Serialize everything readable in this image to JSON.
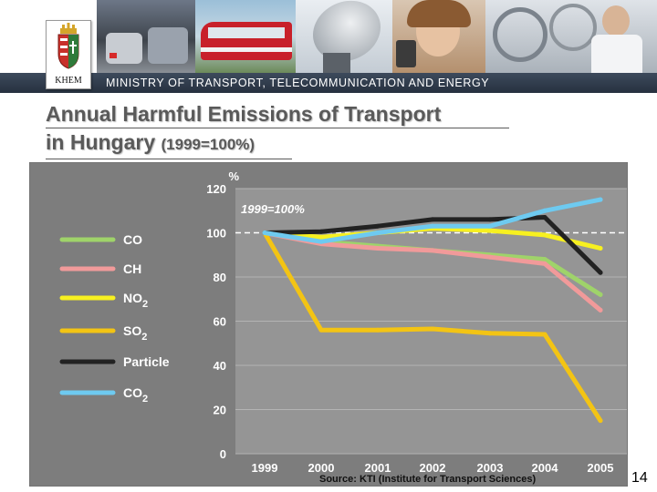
{
  "header": {
    "ministry_name": "MINISTRY OF TRANSPORT, TELECOMMUNICATION AND ENERGY",
    "logo_text": "KHEM",
    "photos": [
      "cars-in-traffic-photo",
      "red-train-photo",
      "satellite-dish-photo",
      "woman-with-phone-photo",
      "engineer-in-lab-photo"
    ]
  },
  "slide": {
    "title_line_1": "Annual Harmful Emissions of Transport",
    "title_line_2": "in Hungary",
    "title_suffix": "(1999=100%)",
    "source": "Source: KTI (Institute for Transport Sciences)",
    "page_number": "14"
  },
  "chart_data": {
    "type": "line",
    "title": "",
    "xlabel": "",
    "ylabel": "%",
    "baseline_label": "1999=100%",
    "categories": [
      "1999",
      "2000",
      "2001",
      "2002",
      "2003",
      "2004",
      "2005"
    ],
    "ylim": [
      0,
      120
    ],
    "yticks": [
      "0",
      "20",
      "40",
      "60",
      "80",
      "100",
      "120"
    ],
    "reference_value": 100,
    "legend_position": "left",
    "grid": true,
    "series": [
      {
        "name": "CO",
        "sub": "",
        "color": "#9fd36a",
        "values": [
          100,
          96,
          94,
          92,
          90,
          88,
          72
        ]
      },
      {
        "name": "CH",
        "sub": "",
        "color": "#f19a9a",
        "values": [
          100,
          95,
          93,
          92,
          89,
          86,
          65
        ]
      },
      {
        "name": "NO",
        "sub": "2",
        "color": "#f7f020",
        "values": [
          100,
          98,
          100,
          102,
          101,
          99,
          93
        ]
      },
      {
        "name": "SO",
        "sub": "2",
        "color": "#f3c414",
        "values": [
          100,
          56,
          56,
          56.5,
          54.5,
          54,
          15
        ]
      },
      {
        "name": "Particle",
        "sub": "",
        "color": "#222222",
        "values": [
          100,
          100.5,
          103,
          106,
          106,
          107,
          82
        ]
      },
      {
        "name": "CO",
        "sub": "2",
        "color": "#6ecaf0",
        "values": [
          100,
          96,
          100,
          103,
          103,
          110,
          115
        ]
      }
    ]
  }
}
